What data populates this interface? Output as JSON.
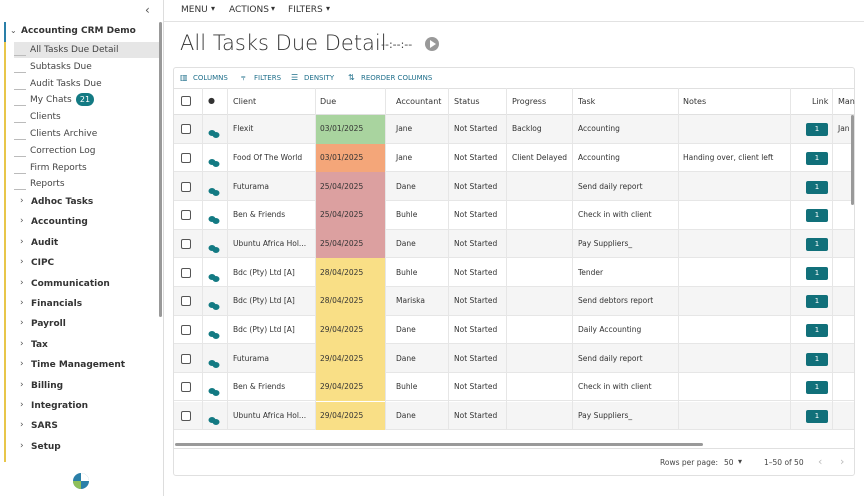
{
  "topbar": {
    "menus": [
      "MENU",
      "ACTIONS",
      "FILTERS"
    ]
  },
  "sidebar": {
    "project": "Accounting CRM Demo",
    "items": [
      {
        "label": "All Tasks Due Detail",
        "active": true
      },
      {
        "label": "Subtasks Due"
      },
      {
        "label": "Audit Tasks Due"
      },
      {
        "label": "My Chats",
        "badge": 21
      },
      {
        "label": "Clients"
      },
      {
        "label": "Clients Archive"
      },
      {
        "label": "Correction Log"
      },
      {
        "label": "Firm Reports"
      },
      {
        "label": "Reports"
      }
    ],
    "groups": [
      "Adhoc Tasks",
      "Accounting",
      "Audit",
      "CIPC",
      "Communication",
      "Financials",
      "Payroll",
      "Tax",
      "Time Management",
      "Billing",
      "Integration",
      "SARS",
      "Setup"
    ]
  },
  "page": {
    "title": "All Tasks Due Detail",
    "timer": "--:--:--"
  },
  "toolbar": [
    "COLUMNS",
    "FILTERS",
    "DENSITY",
    "REORDER COLUMNS"
  ],
  "table": {
    "columns": [
      "Client",
      "Due",
      "Accountant",
      "Status",
      "Progress",
      "Task",
      "Notes",
      "Link",
      "Man"
    ],
    "rows": [
      {
        "client": "Flexit",
        "due": "03/01/2025",
        "due_color": "#a9d49f",
        "accountant": "Jane",
        "status": "Not Started",
        "progress": "Backlog",
        "task": "Accounting",
        "notes": null,
        "link": 1,
        "manager": "Jan"
      },
      {
        "client": "Food Of The World",
        "due": "03/01/2025",
        "due_color": "#f4a679",
        "accountant": "Jane",
        "status": "Not Started",
        "progress": "Client Delayed",
        "task": "Accounting",
        "notes": "Handing over, client left",
        "link": 1,
        "manager": null
      },
      {
        "client": "Futurama",
        "due": "25/04/2025",
        "due_color": "#dca0a0",
        "accountant": "Dane",
        "status": "Not Started",
        "progress": null,
        "task": "Send daily report",
        "notes": null,
        "link": 1,
        "manager": null
      },
      {
        "client": "Ben & Friends",
        "due": "25/04/2025",
        "due_color": "#dca0a0",
        "accountant": "Buhle",
        "status": "Not Started",
        "progress": null,
        "task": "Check in with client",
        "notes": null,
        "link": 1,
        "manager": null
      },
      {
        "client": "Ubuntu Africa Hol...",
        "due": "25/04/2025",
        "due_color": "#dca0a0",
        "accountant": "Dane",
        "status": "Not Started",
        "progress": null,
        "task": "Pay Suppliers_",
        "notes": null,
        "link": 1,
        "manager": null
      },
      {
        "client": "Bdc (Pty) Ltd [A]",
        "due": "28/04/2025",
        "due_color": "#f9df86",
        "accountant": "Buhle",
        "status": "Not Started",
        "progress": null,
        "task": "Tender",
        "notes": null,
        "link": 1,
        "manager": null
      },
      {
        "client": "Bdc (Pty) Ltd [A]",
        "due": "28/04/2025",
        "due_color": "#f9df86",
        "accountant": "Mariska",
        "status": "Not Started",
        "progress": null,
        "task": "Send debtors report",
        "notes": null,
        "link": 1,
        "manager": null
      },
      {
        "client": "Bdc (Pty) Ltd [A]",
        "due": "29/04/2025",
        "due_color": "#f9df86",
        "accountant": "Dane",
        "status": "Not Started",
        "progress": null,
        "task": "Daily Accounting",
        "notes": null,
        "link": 1,
        "manager": null
      },
      {
        "client": "Futurama",
        "due": "29/04/2025",
        "due_color": "#f9df86",
        "accountant": "Dane",
        "status": "Not Started",
        "progress": null,
        "task": "Send daily report",
        "notes": null,
        "link": 1,
        "manager": null
      },
      {
        "client": "Ben & Friends",
        "due": "29/04/2025",
        "due_color": "#f9df86",
        "accountant": "Buhle",
        "status": "Not Started",
        "progress": null,
        "task": "Check in with client",
        "notes": null,
        "link": 1,
        "manager": null
      },
      {
        "client": "Ubuntu Africa Hol...",
        "due": "29/04/2025",
        "due_color": "#f9df86",
        "accountant": "Dane",
        "status": "Not Started",
        "progress": null,
        "task": "Pay Suppliers_",
        "notes": null,
        "link": 1,
        "manager": null
      }
    ]
  },
  "footer": {
    "rows_per_page_label": "Rows per page:",
    "rows_per_page": "50",
    "range": "1–50 of 50"
  }
}
